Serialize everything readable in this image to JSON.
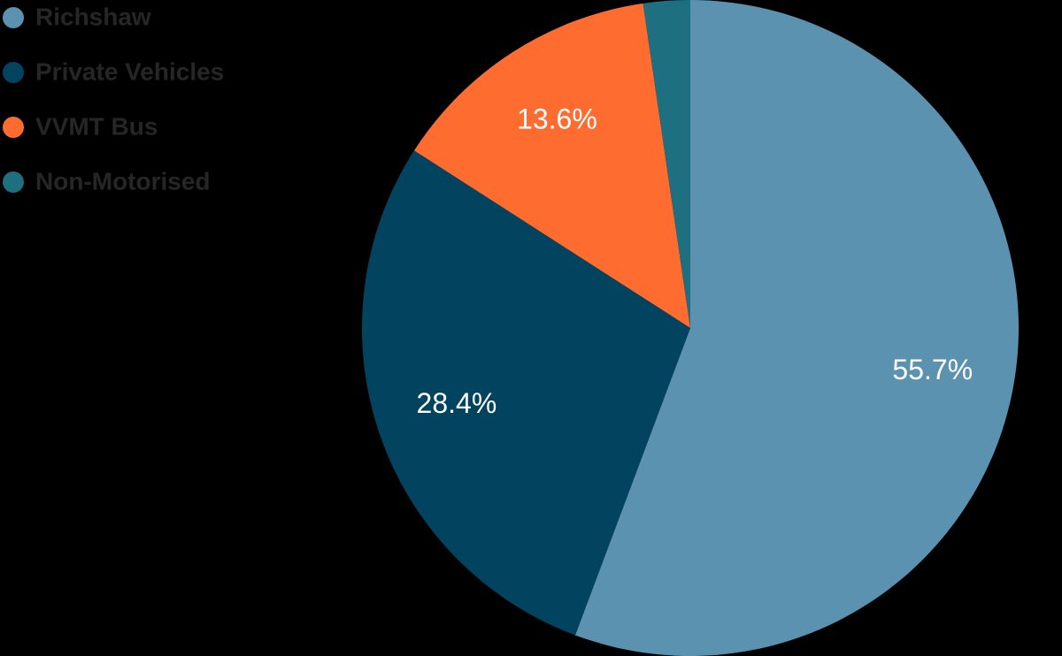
{
  "chart_data": {
    "type": "pie",
    "categories": [
      "Richshaw",
      "Private Vehicles",
      "VVMT Bus",
      "Non-Motorised"
    ],
    "values": [
      55.7,
      28.4,
      13.6,
      2.3
    ],
    "value_labels": [
      "55.7%",
      "28.4%",
      "13.6%",
      null
    ],
    "colors": [
      "#5b92b0",
      "#02445f",
      "#ff6c2f",
      "#1e7080"
    ],
    "legend": "top-left"
  }
}
